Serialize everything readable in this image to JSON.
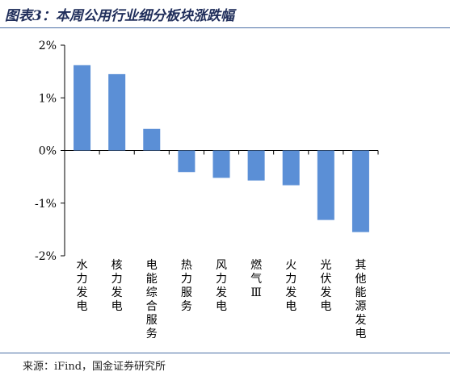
{
  "header": {
    "title": "图表3：本周公用行业细分板块涨跌幅"
  },
  "footer": {
    "source": "来源：iFind，国金证券研究所"
  },
  "colors": {
    "bar": "#5b8fd6",
    "axis": "#000000",
    "rule": "#4a6fa5",
    "title": "#1f2d5a"
  },
  "chart_data": {
    "type": "bar",
    "title": "",
    "xlabel": "",
    "ylabel": "",
    "categories": [
      "水力发电",
      "核力发电",
      "电能综合服务",
      "热力服务",
      "风力发电",
      "燃气Ⅲ",
      "火力发电",
      "光伏发电",
      "其他能源发电"
    ],
    "values": [
      1.62,
      1.45,
      0.41,
      -0.41,
      -0.52,
      -0.57,
      -0.66,
      -1.32,
      -1.55
    ],
    "ylim": [
      -2,
      2
    ],
    "yticks": [
      2,
      1,
      0,
      -1,
      -2
    ],
    "ytick_labels": [
      "2%",
      "1%",
      "0%",
      "-1%",
      "-2%"
    ],
    "grid": false,
    "legend": "none"
  }
}
